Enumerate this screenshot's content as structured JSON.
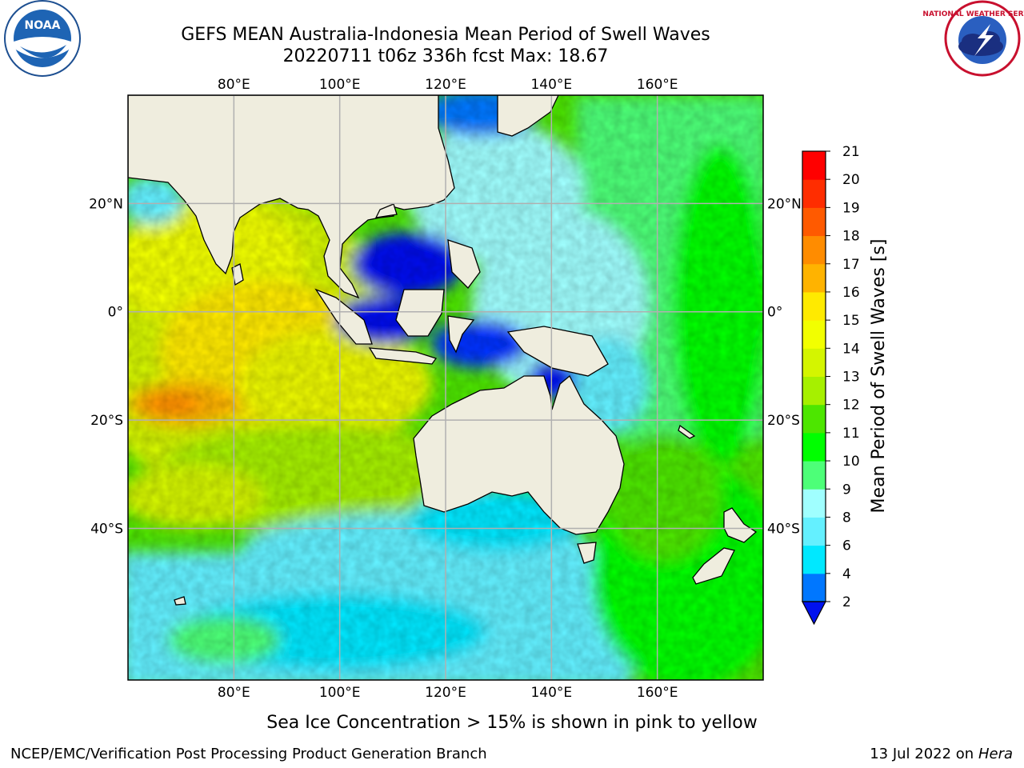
{
  "title_line1": "GEFS MEAN Australia-Indonesia Mean Period of Swell Waves",
  "title_line2": "20220711 t06z 336h fcst   Max: 18.67",
  "note": "Sea Ice Concentration > 15% is shown in pink to yellow",
  "footer_left": "NCEP/EMC/Verification Post Processing Product Generation Branch",
  "footer_right_date": "13 Jul 2022 on",
  "footer_right_host": "Hera",
  "logos": {
    "noaa_text": "NOAA",
    "noaa_ring": "NATIONAL OCEANIC AND ATMOSPHERIC ADMINISTRATION · U.S. DEPARTMENT OF COMMERCE",
    "nws_ring": "NATIONAL WEATHER SERVICE"
  },
  "map": {
    "lon_ticks": [
      "80°E",
      "100°E",
      "120°E",
      "140°E",
      "160°E"
    ],
    "lat_ticks": [
      "20°N",
      "0°",
      "20°S",
      "40°S"
    ],
    "lon_values": [
      80,
      100,
      120,
      140,
      160
    ],
    "lat_values": [
      20,
      0,
      -20,
      -40
    ],
    "lon_range": [
      60,
      180
    ],
    "lat_range": [
      -68,
      40
    ],
    "land_color": "#efedde",
    "grid_color": "#b0b0b0"
  },
  "colorbar": {
    "label": "Mean Period of Swell Waves [s]",
    "ticks": [
      "2",
      "4",
      "6",
      "8",
      "9",
      "10",
      "11",
      "12",
      "13",
      "14",
      "15",
      "16",
      "17",
      "18",
      "19",
      "20",
      "21"
    ],
    "colors": [
      "#0077ff",
      "#00e8ff",
      "#64f0ff",
      "#a0ffff",
      "#4dff78",
      "#00ff00",
      "#4de600",
      "#a6f000",
      "#d4f500",
      "#f2ff00",
      "#ffea00",
      "#ffb300",
      "#ff8c00",
      "#ff5a00",
      "#ff2d00",
      "#ff0000"
    ],
    "extend_color": "#0011ee"
  }
}
